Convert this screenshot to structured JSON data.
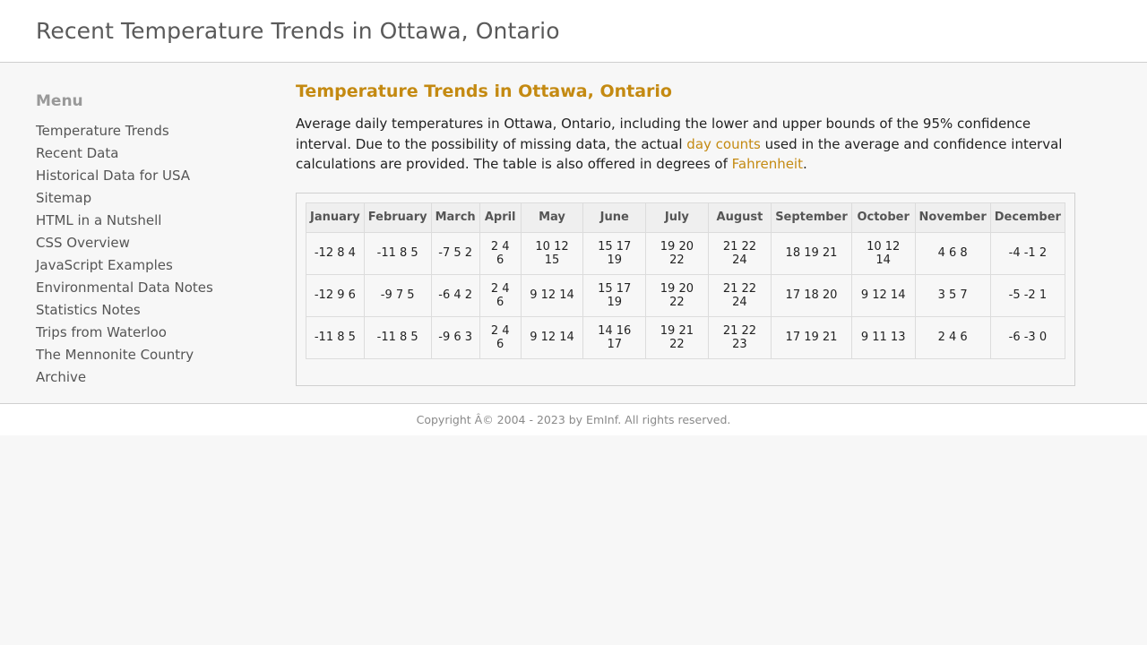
{
  "header": {
    "title": "Recent Temperature Trends in Ottawa, Ontario"
  },
  "sidebar": {
    "heading": "Menu",
    "items": [
      {
        "label": "Temperature Trends"
      },
      {
        "label": "Recent Data"
      },
      {
        "label": "Historical Data for USA"
      },
      {
        "label": "Sitemap"
      },
      {
        "label": "HTML in a Nutshell"
      },
      {
        "label": "CSS Overview"
      },
      {
        "label": "JavaScript Examples"
      },
      {
        "label": "Environmental Data Notes"
      },
      {
        "label": "Statistics Notes"
      },
      {
        "label": "Trips from Waterloo"
      },
      {
        "label": "The Mennonite Country"
      },
      {
        "label": "Archive"
      }
    ]
  },
  "main": {
    "title": "Temperature Trends in Ottawa, Ontario",
    "intro": {
      "part1": "Average daily temperatures in Ottawa, Ontario, including the lower and upper bounds of the 95% confidence interval. Due to the possibility of missing data, the actual ",
      "link1": "day counts",
      "part2": " used in the average and confidence interval calculations are provided. The table is also offered in degrees of ",
      "link2": "Fahrenheit",
      "part3": "."
    },
    "table": {
      "headers": [
        "January",
        "February",
        "March",
        "April",
        "May",
        "June",
        "July",
        "August",
        "September",
        "October",
        "November",
        "December"
      ],
      "rows": [
        [
          "-12 8 4",
          "-11 8 5",
          "-7 5 2",
          "2 4 6",
          "10 12 15",
          "15 17 19",
          "19 20 22",
          "21 22 24",
          "18 19 21",
          "10 12 14",
          "4 6 8",
          "-4 -1 2"
        ],
        [
          "-12 9 6",
          "-9 7 5",
          "-6 4 2",
          "2 4 6",
          "9 12 14",
          "15 17 19",
          "19 20 22",
          "21 22 24",
          "17 18 20",
          "9 12 14",
          "3 5 7",
          "-5 -2 1"
        ],
        [
          "-11 8 5",
          "-11 8 5",
          "-9 6 3",
          "2 4 6",
          "9 12 14",
          "14 16 17",
          "19 21 22",
          "21 22 23",
          "17 19 21",
          "9 11 13",
          "2 4 6",
          "-6 -3 0"
        ]
      ]
    }
  },
  "footer": {
    "copyright": "Copyright Â© 2004 - 2023 by EmInf. All rights reserved."
  },
  "colors": {
    "accent": "#c48a12",
    "menu_heading": "#999999",
    "title": "#5a5a5a"
  }
}
